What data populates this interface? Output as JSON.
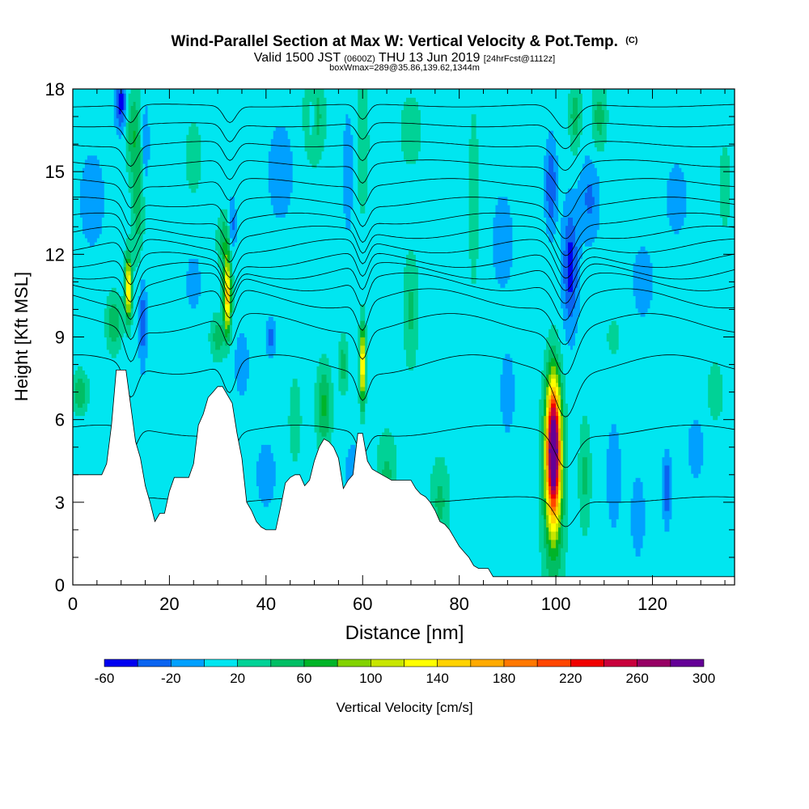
{
  "header": {
    "title": "Wind-Parallel Section at Max W: Vertical Velocity & Pot.Temp.",
    "copyright": "(C)",
    "valid_prefix": "Valid 1500 JST",
    "valid_utc": "(0600Z)",
    "valid_date": "THU 13 Jun 2019",
    "forecast": "[24hrFcst@1112z]",
    "box_info": "boxWmax=289@35.86,139.62,1344m"
  },
  "chart_data": {
    "type": "heatmap",
    "xlabel": "Distance [nm]",
    "ylabel": "Height [Kft MSL]",
    "xlim": [
      0,
      137
    ],
    "ylim": [
      0,
      18
    ],
    "x_ticks": [
      "0",
      "20",
      "40",
      "60",
      "80",
      "100",
      "120"
    ],
    "x_tick_values": [
      0,
      20,
      40,
      60,
      80,
      100,
      120
    ],
    "y_ticks": [
      "0",
      "3",
      "6",
      "9",
      "12",
      "15",
      "18"
    ],
    "y_tick_values": [
      0,
      3,
      6,
      9,
      12,
      15,
      18
    ],
    "background_w": 10,
    "blobs": [
      {
        "x": 11.5,
        "y": 10.8,
        "sx": 0.7,
        "sy": 1.1,
        "w": 140
      },
      {
        "x": 12.5,
        "y": 16.5,
        "sx": 1.5,
        "sy": 1.6,
        "w": 45
      },
      {
        "x": 13.5,
        "y": 14.0,
        "sx": 1.2,
        "sy": 2.0,
        "w": 45
      },
      {
        "x": 1.5,
        "y": 7.0,
        "sx": 1.6,
        "sy": 0.7,
        "w": 50
      },
      {
        "x": 8.5,
        "y": 9.5,
        "sx": 1.5,
        "sy": 1.0,
        "w": 50
      },
      {
        "x": 10,
        "y": 17.5,
        "sx": 1.2,
        "sy": 1.0,
        "w": -60
      },
      {
        "x": 14.5,
        "y": 9.5,
        "sx": 0.8,
        "sy": 1.5,
        "w": -45
      },
      {
        "x": 15,
        "y": 16,
        "sx": 0.8,
        "sy": 1.5,
        "w": -30
      },
      {
        "x": 32,
        "y": 10.5,
        "sx": 0.8,
        "sy": 1.3,
        "w": 150
      },
      {
        "x": 31.5,
        "y": 12.5,
        "sx": 1.5,
        "sy": 1.0,
        "w": 45
      },
      {
        "x": 33,
        "y": 13.0,
        "sx": 0.8,
        "sy": 1.0,
        "w": -45
      },
      {
        "x": 30,
        "y": 9.0,
        "sx": 1.5,
        "sy": 0.8,
        "w": 40
      },
      {
        "x": 25,
        "y": 11.0,
        "sx": 1.5,
        "sy": 1.0,
        "w": -25
      },
      {
        "x": 35,
        "y": 8.0,
        "sx": 1.5,
        "sy": 1.2,
        "w": -25
      },
      {
        "x": 41,
        "y": 9.0,
        "sx": 1.0,
        "sy": 0.6,
        "w": -40
      },
      {
        "x": 40,
        "y": 4.0,
        "sx": 2.0,
        "sy": 1.2,
        "w": -25
      },
      {
        "x": 46,
        "y": 6.0,
        "sx": 1.2,
        "sy": 1.5,
        "w": 30
      },
      {
        "x": 52,
        "y": 6.5,
        "sx": 1.5,
        "sy": 1.5,
        "w": 55
      },
      {
        "x": 56,
        "y": 8.0,
        "sx": 1.0,
        "sy": 1.0,
        "w": 40
      },
      {
        "x": 60,
        "y": 8.0,
        "sx": 0.6,
        "sy": 1.4,
        "w": 140
      },
      {
        "x": 60,
        "y": 16.0,
        "sx": 1.2,
        "sy": 2.5,
        "w": 30
      },
      {
        "x": 50,
        "y": 17.0,
        "sx": 2.0,
        "sy": 1.5,
        "w": 45
      },
      {
        "x": 49.5,
        "y": 17.0,
        "sx": 0.8,
        "sy": 0.8,
        "w": -45
      },
      {
        "x": 57,
        "y": 15.0,
        "sx": 1.0,
        "sy": 2.0,
        "w": -30
      },
      {
        "x": 58,
        "y": 4.0,
        "sx": 1.5,
        "sy": 1.0,
        "w": -30
      },
      {
        "x": 65,
        "y": 4.0,
        "sx": 2.0,
        "sy": 1.5,
        "w": 35
      },
      {
        "x": 70,
        "y": 10.0,
        "sx": 1.5,
        "sy": 2.0,
        "w": 35
      },
      {
        "x": 76,
        "y": 3.0,
        "sx": 2.0,
        "sy": 1.5,
        "w": 35
      },
      {
        "x": 90,
        "y": 7.0,
        "sx": 1.5,
        "sy": 1.5,
        "w": -25
      },
      {
        "x": 83,
        "y": 14.0,
        "sx": 1.0,
        "sy": 3.0,
        "w": 30
      },
      {
        "x": 99.5,
        "y": 5.0,
        "sx": 1.4,
        "sy": 2.3,
        "w": 290
      },
      {
        "x": 99.5,
        "y": 3.5,
        "sx": 2.2,
        "sy": 3.5,
        "w": 70
      },
      {
        "x": 103,
        "y": 11.5,
        "sx": 1.6,
        "sy": 2.2,
        "w": -60
      },
      {
        "x": 99,
        "y": 14.5,
        "sx": 1.2,
        "sy": 1.6,
        "w": -50
      },
      {
        "x": 107,
        "y": 14.0,
        "sx": 2.0,
        "sy": 1.5,
        "w": -35
      },
      {
        "x": 104,
        "y": 17.0,
        "sx": 1.2,
        "sy": 1.2,
        "w": 45
      },
      {
        "x": 109,
        "y": 17.0,
        "sx": 1.5,
        "sy": 1.2,
        "w": 40
      },
      {
        "x": 106,
        "y": 4.0,
        "sx": 1.2,
        "sy": 2.0,
        "w": 35
      },
      {
        "x": 112,
        "y": 4.0,
        "sx": 1.5,
        "sy": 2.0,
        "w": -25
      },
      {
        "x": 117,
        "y": 2.5,
        "sx": 1.5,
        "sy": 1.5,
        "w": -25
      },
      {
        "x": 123,
        "y": 3.5,
        "sx": 0.8,
        "sy": 1.2,
        "w": -55
      },
      {
        "x": 129,
        "y": 5.0,
        "sx": 1.5,
        "sy": 1.0,
        "w": -30
      },
      {
        "x": 133,
        "y": 7.0,
        "sx": 1.5,
        "sy": 1.0,
        "w": 30
      },
      {
        "x": 135,
        "y": 14.5,
        "sx": 1.2,
        "sy": 1.5,
        "w": 25
      },
      {
        "x": 118,
        "y": 11.0,
        "sx": 2.5,
        "sy": 1.5,
        "w": -20
      },
      {
        "x": 125,
        "y": 14.0,
        "sx": 2.5,
        "sy": 1.5,
        "w": -20
      },
      {
        "x": 4,
        "y": 14.0,
        "sx": 3.0,
        "sy": 2.0,
        "w": -20
      },
      {
        "x": 25,
        "y": 15.5,
        "sx": 2.5,
        "sy": 2.0,
        "w": 15
      },
      {
        "x": 43,
        "y": 15.0,
        "sx": 3.0,
        "sy": 2.0,
        "w": -20
      },
      {
        "x": 89,
        "y": 12.5,
        "sx": 2.5,
        "sy": 2.0,
        "w": -20
      },
      {
        "x": 112,
        "y": 9.0,
        "sx": 3.0,
        "sy": 1.5,
        "w": 12
      },
      {
        "x": 70,
        "y": 16.5,
        "sx": 2.5,
        "sy": 1.5,
        "w": 20
      }
    ],
    "terrain": [
      [
        0,
        4.0
      ],
      [
        6,
        4.0
      ],
      [
        7,
        4.4
      ],
      [
        8,
        5.8
      ],
      [
        9,
        7.8
      ],
      [
        11,
        7.8
      ],
      [
        12,
        6.5
      ],
      [
        13,
        5.2
      ],
      [
        14,
        4.6
      ],
      [
        15,
        3.6
      ],
      [
        16,
        3.0
      ],
      [
        17,
        2.3
      ],
      [
        18,
        2.6
      ],
      [
        19,
        2.6
      ],
      [
        20,
        3.4
      ],
      [
        21,
        3.9
      ],
      [
        24,
        3.9
      ],
      [
        25,
        4.4
      ],
      [
        26,
        5.8
      ],
      [
        27,
        6.2
      ],
      [
        28,
        6.8
      ],
      [
        29,
        7.0
      ],
      [
        30,
        7.2
      ],
      [
        31,
        7.2
      ],
      [
        33,
        6.6
      ],
      [
        34,
        5.5
      ],
      [
        35,
        4.6
      ],
      [
        36,
        3.0
      ],
      [
        37,
        2.7
      ],
      [
        38,
        2.3
      ],
      [
        39,
        2.1
      ],
      [
        40,
        2.0
      ],
      [
        42,
        2.0
      ],
      [
        43,
        2.8
      ],
      [
        44,
        3.7
      ],
      [
        45,
        3.9
      ],
      [
        46,
        4.0
      ],
      [
        47,
        4.0
      ],
      [
        48,
        3.6
      ],
      [
        49,
        3.8
      ],
      [
        50,
        4.5
      ],
      [
        51,
        5.0
      ],
      [
        52,
        5.3
      ],
      [
        53,
        5.2
      ],
      [
        54,
        5.0
      ],
      [
        55,
        4.6
      ],
      [
        56,
        3.5
      ],
      [
        57,
        3.8
      ],
      [
        58,
        4.0
      ],
      [
        59,
        5.5
      ],
      [
        60,
        5.5
      ],
      [
        61,
        4.5
      ],
      [
        62,
        4.2
      ],
      [
        64,
        4.0
      ],
      [
        65,
        3.9
      ],
      [
        66,
        3.8
      ],
      [
        67,
        3.8
      ],
      [
        70,
        3.8
      ],
      [
        71,
        3.5
      ],
      [
        72,
        3.3
      ],
      [
        73,
        3.2
      ],
      [
        74,
        3.0
      ],
      [
        75,
        2.7
      ],
      [
        76,
        2.3
      ],
      [
        77,
        2.2
      ],
      [
        78,
        2.0
      ],
      [
        79,
        1.7
      ],
      [
        80,
        1.4
      ],
      [
        81,
        1.2
      ],
      [
        82,
        1.0
      ],
      [
        83,
        0.7
      ],
      [
        84,
        0.6
      ],
      [
        86,
        0.6
      ],
      [
        87,
        0.3
      ],
      [
        137,
        0.3
      ]
    ],
    "isentropes": [
      {
        "base": 3.1,
        "amp": 0.2
      },
      {
        "base": 5.6,
        "amp": 0.4
      },
      {
        "base": 8.0,
        "amp": 0.7
      },
      {
        "base": 9.5,
        "amp": 0.7
      },
      {
        "base": 10.4,
        "amp": 0.7
      },
      {
        "base": 11.0,
        "amp": 0.65
      },
      {
        "base": 11.4,
        "amp": 0.6
      },
      {
        "base": 11.8,
        "amp": 0.55
      },
      {
        "base": 12.3,
        "amp": 0.5
      },
      {
        "base": 12.8,
        "amp": 0.45
      },
      {
        "base": 13.3,
        "amp": 0.4
      },
      {
        "base": 13.9,
        "amp": 0.35
      },
      {
        "base": 14.6,
        "amp": 0.3
      },
      {
        "base": 15.3,
        "amp": 0.25
      },
      {
        "base": 16.0,
        "amp": 0.2
      },
      {
        "base": 16.7,
        "amp": 0.15
      },
      {
        "base": 17.4,
        "amp": 0.1
      }
    ],
    "isentrope_dips": [
      {
        "x": 12,
        "sx": 1.8,
        "d": 1.4
      },
      {
        "x": 32.5,
        "sx": 1.8,
        "d": 1.3
      },
      {
        "x": 60,
        "sx": 1.6,
        "d": 1.2
      },
      {
        "x": 102,
        "sx": 3.0,
        "d": 1.9
      }
    ],
    "colorbar": {
      "label": "Vertical Velocity [cm/s]",
      "min": -60,
      "max": 300,
      "step": 20,
      "tick_labels": [
        "-60",
        "-20",
        "20",
        "60",
        "100",
        "140",
        "180",
        "220",
        "260",
        "300"
      ],
      "tick_values": [
        -60,
        -20,
        20,
        60,
        100,
        140,
        180,
        220,
        260,
        300
      ],
      "colors": [
        "#0000f0",
        "#0a64f0",
        "#00a0ff",
        "#00e6f0",
        "#00d296",
        "#00be64",
        "#00b428",
        "#82d200",
        "#c8e600",
        "#ffff00",
        "#ffd200",
        "#ffaa00",
        "#ff7800",
        "#ff4600",
        "#f00000",
        "#c8003c",
        "#960064",
        "#640096"
      ]
    }
  }
}
